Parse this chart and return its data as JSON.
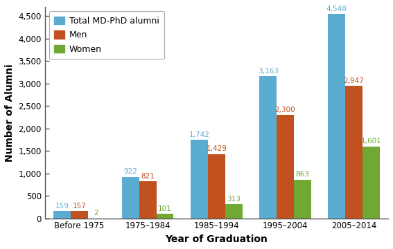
{
  "categories": [
    "Before 1975",
    "1975–1984",
    "1985–1994",
    "1995–2004",
    "2005–2014"
  ],
  "total": [
    159,
    922,
    1742,
    3163,
    4548
  ],
  "men": [
    157,
    821,
    1429,
    2300,
    2947
  ],
  "women": [
    2,
    101,
    313,
    863,
    1601
  ],
  "color_total": "#5bacd1",
  "color_men": "#c1511f",
  "color_women": "#6fa832",
  "xlabel": "Year of Graduation",
  "ylabel": "Number of Alumni",
  "ylim": [
    0,
    4700
  ],
  "yticks": [
    0,
    500,
    1000,
    1500,
    2000,
    2500,
    3000,
    3500,
    4000,
    4500
  ],
  "legend_labels": [
    "Total MD-PhD alumni",
    "Men",
    "Women"
  ],
  "bar_width": 0.25,
  "label_fontsize": 7.5,
  "axis_label_fontsize": 10,
  "tick_fontsize": 8.5,
  "legend_fontsize": 9
}
